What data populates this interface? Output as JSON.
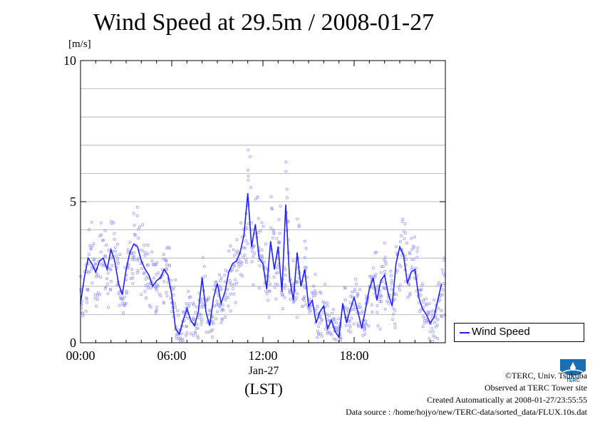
{
  "chart_data": {
    "type": "scatter",
    "title": "Wind Speed at 29.5m / 2008-01-27",
    "ylabel": "[m/s]",
    "xlabel_date": "Jan-27",
    "xlabel_tz": "(LST)",
    "ylim": [
      0,
      10
    ],
    "xlim": [
      0,
      24
    ],
    "yticks": [
      0,
      5,
      10
    ],
    "xticks": [
      {
        "value": 0,
        "label": "00:00"
      },
      {
        "value": 6,
        "label": "06:00"
      },
      {
        "value": 12,
        "label": "12:00"
      },
      {
        "value": 18,
        "label": "18:00"
      }
    ],
    "grid": true,
    "legend_position": "right-bottom",
    "series": [
      {
        "name": "Wind Speed",
        "color": "#2020ff",
        "x": [
          0.0,
          0.25,
          0.5,
          0.75,
          1.0,
          1.25,
          1.5,
          1.75,
          2.0,
          2.25,
          2.5,
          2.75,
          3.0,
          3.25,
          3.5,
          3.75,
          4.0,
          4.25,
          4.5,
          4.75,
          5.0,
          5.25,
          5.5,
          5.75,
          6.0,
          6.25,
          6.5,
          6.75,
          7.0,
          7.25,
          7.5,
          7.75,
          8.0,
          8.25,
          8.5,
          8.75,
          9.0,
          9.25,
          9.5,
          9.75,
          10.0,
          10.25,
          10.5,
          10.75,
          11.0,
          11.25,
          11.5,
          11.75,
          12.0,
          12.25,
          12.5,
          12.75,
          13.0,
          13.25,
          13.5,
          13.75,
          14.0,
          14.25,
          14.5,
          14.75,
          15.0,
          15.25,
          15.5,
          15.75,
          16.0,
          16.25,
          16.5,
          16.75,
          17.0,
          17.25,
          17.5,
          17.75,
          18.0,
          18.25,
          18.5,
          18.75,
          19.0,
          19.25,
          19.5,
          19.75,
          20.0,
          20.25,
          20.5,
          20.75,
          21.0,
          21.25,
          21.5,
          21.75,
          22.0,
          22.25,
          22.5,
          22.75,
          23.0,
          23.25,
          23.5,
          23.75
        ],
        "values": [
          1.4,
          2.3,
          3.0,
          2.8,
          2.5,
          2.9,
          3.0,
          2.6,
          3.3,
          2.9,
          2.1,
          1.7,
          2.6,
          3.2,
          3.5,
          3.4,
          2.9,
          2.6,
          2.4,
          2.0,
          2.2,
          2.3,
          2.6,
          2.4,
          1.7,
          0.5,
          0.3,
          0.8,
          1.2,
          0.8,
          0.6,
          1.1,
          2.3,
          1.1,
          0.6,
          1.6,
          2.1,
          1.4,
          1.8,
          2.5,
          2.8,
          2.9,
          3.2,
          3.8,
          5.3,
          3.4,
          4.2,
          3.0,
          2.8,
          1.9,
          3.6,
          2.6,
          3.4,
          1.8,
          4.9,
          2.3,
          1.5,
          3.2,
          2.0,
          2.6,
          1.3,
          1.5,
          0.7,
          1.1,
          1.3,
          0.5,
          0.8,
          0.4,
          0.2,
          1.4,
          0.7,
          1.2,
          1.6,
          1.1,
          0.5,
          1.2,
          1.9,
          2.3,
          1.5,
          2.2,
          2.4,
          1.7,
          1.3,
          2.8,
          3.4,
          3.1,
          2.1,
          2.5,
          2.6,
          1.6,
          1.2,
          1.0,
          0.7,
          0.9,
          1.5,
          2.1
        ]
      }
    ]
  },
  "credits": {
    "copyright": "©TERC, Univ. Tsukuba",
    "observed": "Observed at TERC Tower site",
    "created": "Created Automatically at 2008-01-27/23:55:55",
    "source": "Data source : /home/hojyo/new/TERC-data/sorted_data/FLUX.10s.dat"
  },
  "logo": {
    "text": "TERC",
    "color": "#1a6fb7"
  }
}
